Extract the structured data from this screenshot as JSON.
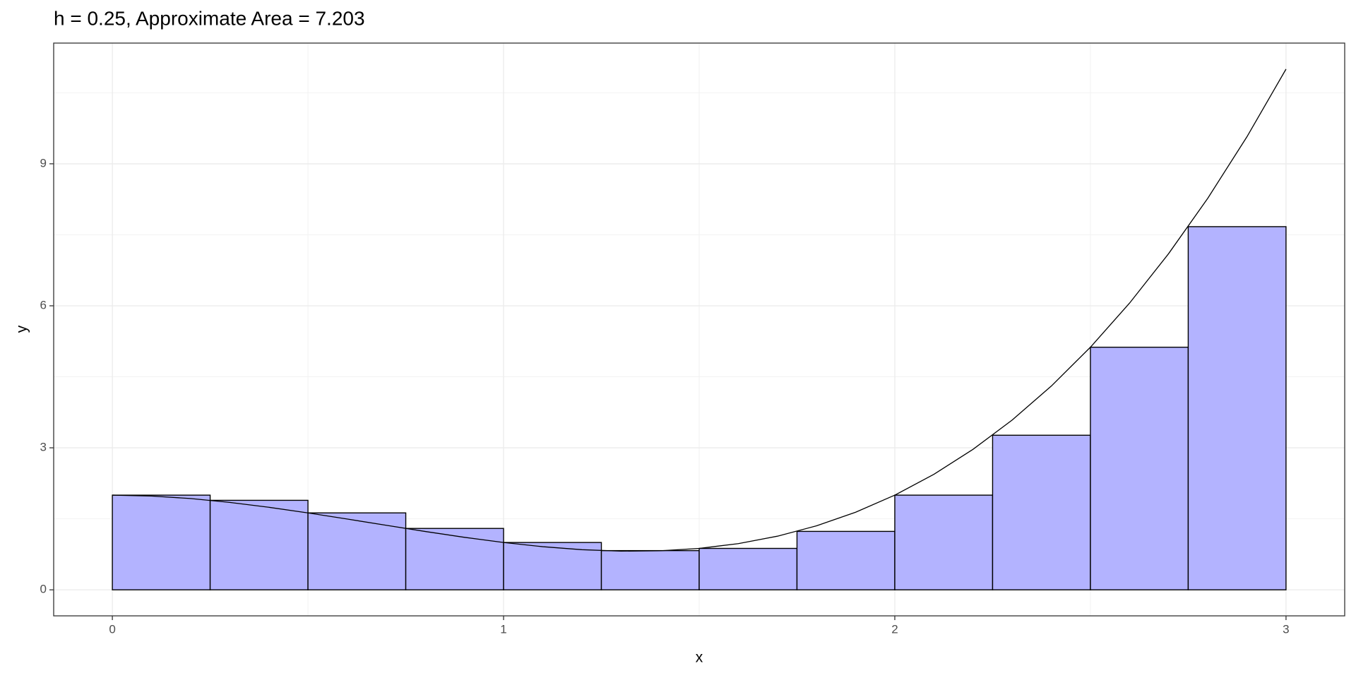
{
  "chart_data": {
    "type": "histogram",
    "title": "h = 0.25, Approximate Area = 7.203",
    "x_label": "x",
    "y_label": "y",
    "bins": [
      0,
      0.25,
      0.5,
      0.75,
      1,
      1.25,
      1.5,
      1.75,
      2,
      2.25,
      2.5,
      2.75,
      3
    ],
    "values": [
      2,
      1.890625,
      1.625,
      1.296875,
      1,
      0.828125,
      0.875,
      1.234375,
      2,
      3.265625,
      5.125,
      7.671875
    ],
    "color": "#b3b3ff",
    "curve": {
      "x": [
        0,
        0.1,
        0.2,
        0.3,
        0.4,
        0.5,
        0.6,
        0.7,
        0.8,
        0.9,
        1,
        1.1,
        1.2,
        1.3,
        1.4,
        1.5,
        1.6,
        1.7,
        1.8,
        1.9,
        2,
        2.1,
        2.2,
        2.3,
        2.4,
        2.5,
        2.6,
        2.7,
        2.8,
        2.9,
        3
      ],
      "values": [
        2,
        1.981,
        1.928,
        1.847,
        1.744,
        1.625,
        1.496,
        1.363,
        1.232,
        1.109,
        1,
        0.911,
        0.848,
        0.817,
        0.824,
        0.875,
        0.976,
        1.133,
        1.352,
        1.639,
        2,
        2.441,
        2.968,
        3.587,
        4.304,
        5.125,
        6.056,
        7.103,
        8.272,
        9.569,
        11
      ],
      "color": "#000000"
    },
    "xlim": [
      -0.15,
      3.15
    ],
    "xticks": [
      0,
      1,
      2,
      3
    ],
    "x_minor_grid": [
      0.5,
      1.5,
      2.5
    ],
    "ylim": [
      -0.55,
      11.55
    ],
    "yticks": [
      0,
      3,
      6,
      9
    ],
    "y_minor_grid": [
      1.5,
      4.5,
      7.5,
      10.5
    ],
    "grid": true
  }
}
